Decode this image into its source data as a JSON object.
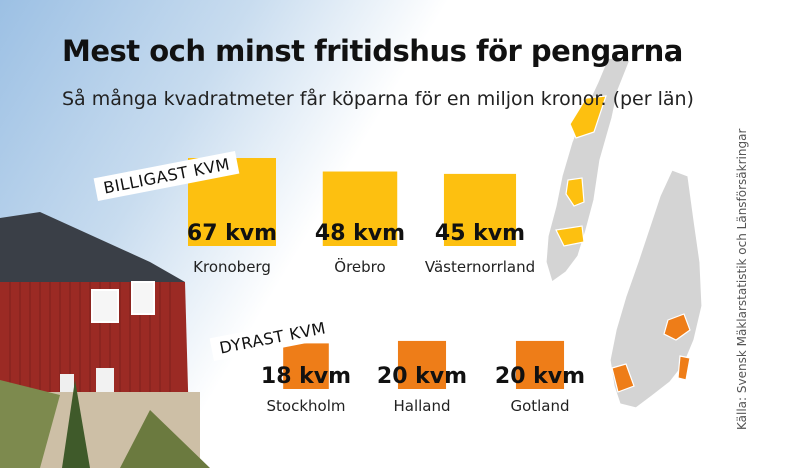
{
  "title": "Mest och minst fritidshus för pengarna",
  "subtitle": "Så många kvadratmeter får köparna för en miljon kronor. (per län)",
  "source": "Källa: Svensk Mäklarstatistik och Länsförsäkringar",
  "colors": {
    "cheapest": "#FDC010",
    "most_expensive": "#EE7D18",
    "map_land": "#D4D4D4",
    "map_border": "#FFFFFF"
  },
  "chart_data": [
    {
      "type": "bar",
      "section_label": "BILLIGAST KVM",
      "unit": "kvm",
      "categories": [
        "Kronoberg",
        "Örebro",
        "Västernorrland"
      ],
      "values": [
        67,
        48,
        45
      ],
      "value_labels": [
        "67 kvm",
        "48 kvm",
        "45 kvm"
      ],
      "color": "#FDC010",
      "encoding": "square area"
    },
    {
      "type": "bar",
      "section_label": "DYRAST KVM",
      "unit": "kvm",
      "categories": [
        "Stockholm",
        "Halland",
        "Gotland"
      ],
      "values": [
        18,
        20,
        20
      ],
      "value_labels": [
        "18 kvm",
        "20 kvm",
        "20 kvm"
      ],
      "color": "#EE7D18",
      "encoding": "square area"
    }
  ]
}
